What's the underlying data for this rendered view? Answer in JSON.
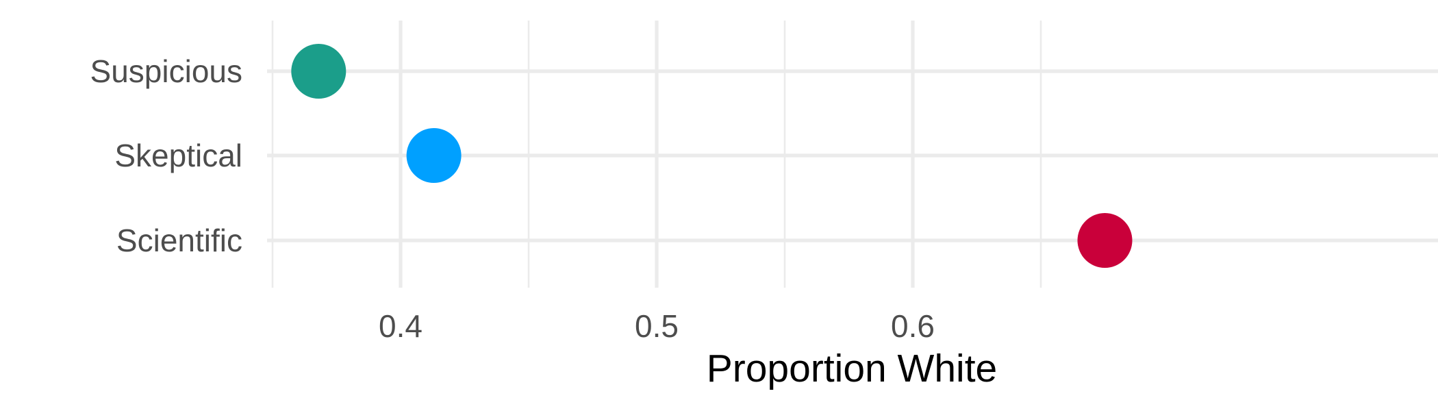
{
  "chart_data": {
    "type": "scatter",
    "title": "",
    "xlabel": "Proportion White",
    "ylabel": "",
    "xlim": [
      0.35,
      0.69
    ],
    "x_ticks": [
      0.4,
      0.5,
      0.6
    ],
    "x_tick_labels": [
      "0.4",
      "0.5",
      "0.6"
    ],
    "x_minor_ticks": [
      0.35,
      0.45,
      0.55,
      0.65
    ],
    "categories": [
      "Suspicious",
      "Skeptical",
      "Scientific"
    ],
    "points": [
      {
        "category": "Suspicious",
        "x": 0.368,
        "color": "#1b9e8a"
      },
      {
        "category": "Skeptical",
        "x": 0.413,
        "color": "#00a0ff"
      },
      {
        "category": "Scientific",
        "x": 0.675,
        "color": "#c9003a"
      }
    ],
    "grid": true,
    "legend": "none"
  }
}
